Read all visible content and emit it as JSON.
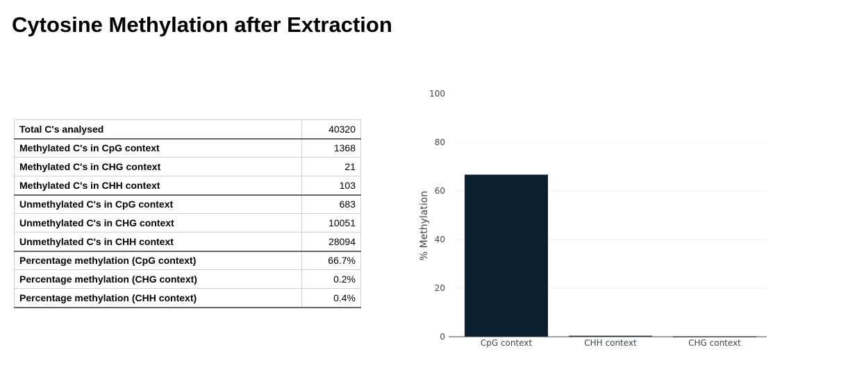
{
  "page": {
    "title": "Cytosine Methylation after Extraction"
  },
  "table": {
    "rows": [
      {
        "label": "Total C's analysed",
        "value": "40320"
      },
      {
        "label": "Methylated C's in CpG context",
        "value": "1368"
      },
      {
        "label": "Methylated C's in CHG context",
        "value": "21"
      },
      {
        "label": "Methylated C's in CHH context",
        "value": "103"
      },
      {
        "label": "Unmethylated C's in CpG context",
        "value": "683"
      },
      {
        "label": "Unmethylated C's in CHG context",
        "value": "10051"
      },
      {
        "label": "Unmethylated C's in CHH context",
        "value": "28094"
      },
      {
        "label": "Percentage methylation (CpG context)",
        "value": "66.7%"
      },
      {
        "label": "Percentage methylation (CHG context)",
        "value": "0.2%"
      },
      {
        "label": "Percentage methylation (CHH context)",
        "value": "0.4%"
      }
    ]
  },
  "chart_data": {
    "type": "bar",
    "categories": [
      "CpG context",
      "CHH context",
      "CHG context"
    ],
    "values": [
      66.7,
      0.4,
      0.2
    ],
    "title": "",
    "xlabel": "",
    "ylabel": "% Methylation",
    "ylim": [
      0,
      100
    ],
    "yticks": [
      0,
      20,
      40,
      60,
      80,
      100
    ],
    "grid": true,
    "bar_color": "#0b1f33"
  }
}
